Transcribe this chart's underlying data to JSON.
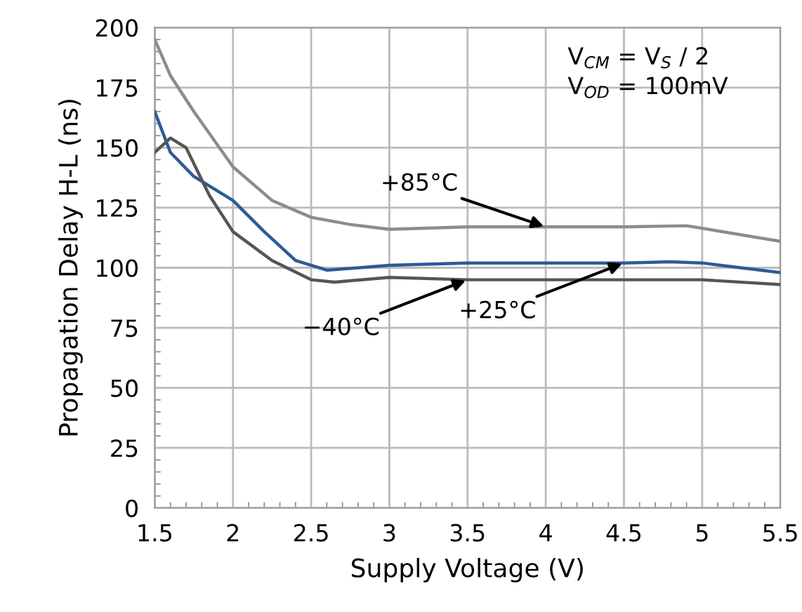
{
  "chart_data": {
    "type": "line",
    "xlabel": "Supply Voltage (V)",
    "ylabel": "Propagation Delay H-L (ns)",
    "xlim": [
      1.5,
      5.5
    ],
    "ylim": [
      0,
      200
    ],
    "xticks": [
      1.5,
      2,
      2.5,
      3,
      3.5,
      4,
      4.5,
      5,
      5.5
    ],
    "yticks": [
      0,
      25,
      50,
      75,
      100,
      125,
      150,
      175,
      200
    ],
    "grid": true,
    "legend": false,
    "marker": "none",
    "line_style": "solid",
    "series": [
      {
        "color": "#8c8c8c",
        "x": [
          1.5,
          1.6,
          1.75,
          2.0,
          2.25,
          2.5,
          2.75,
          3.0,
          3.5,
          4.0,
          4.5,
          4.9,
          5.5
        ],
        "values": [
          195,
          180,
          165,
          142,
          128,
          121,
          118,
          116,
          117,
          117,
          117,
          117.5,
          111
        ]
      },
      {
        "color": "#2e5a96",
        "x": [
          1.5,
          1.6,
          1.75,
          2.0,
          2.2,
          2.4,
          2.6,
          3.0,
          3.5,
          4.0,
          4.5,
          4.8,
          5.0,
          5.5
        ],
        "values": [
          165,
          148,
          138,
          128,
          115,
          103,
          99,
          101,
          102,
          102,
          102,
          102.5,
          102,
          98
        ]
      },
      {
        "color": "#555555",
        "x": [
          1.5,
          1.6,
          1.7,
          1.85,
          2.0,
          2.25,
          2.5,
          2.65,
          3.0,
          3.5,
          4.0,
          4.5,
          5.0,
          5.5
        ],
        "values": [
          148,
          154,
          150,
          130,
          115,
          103,
          95,
          94,
          96,
          95,
          95,
          95,
          95,
          93
        ]
      }
    ],
    "annotations": [
      {
        "text": "+85°C",
        "x": 4.0,
        "y": 117
      },
      {
        "text": "−40°C",
        "x": 3.5,
        "y": 95
      },
      {
        "text": "+25°C",
        "x": 4.5,
        "y": 102
      },
      "V$_{CM}$ = V$_{S}$ / 2\nV$_{OD}$ = 100mV"
    ]
  }
}
